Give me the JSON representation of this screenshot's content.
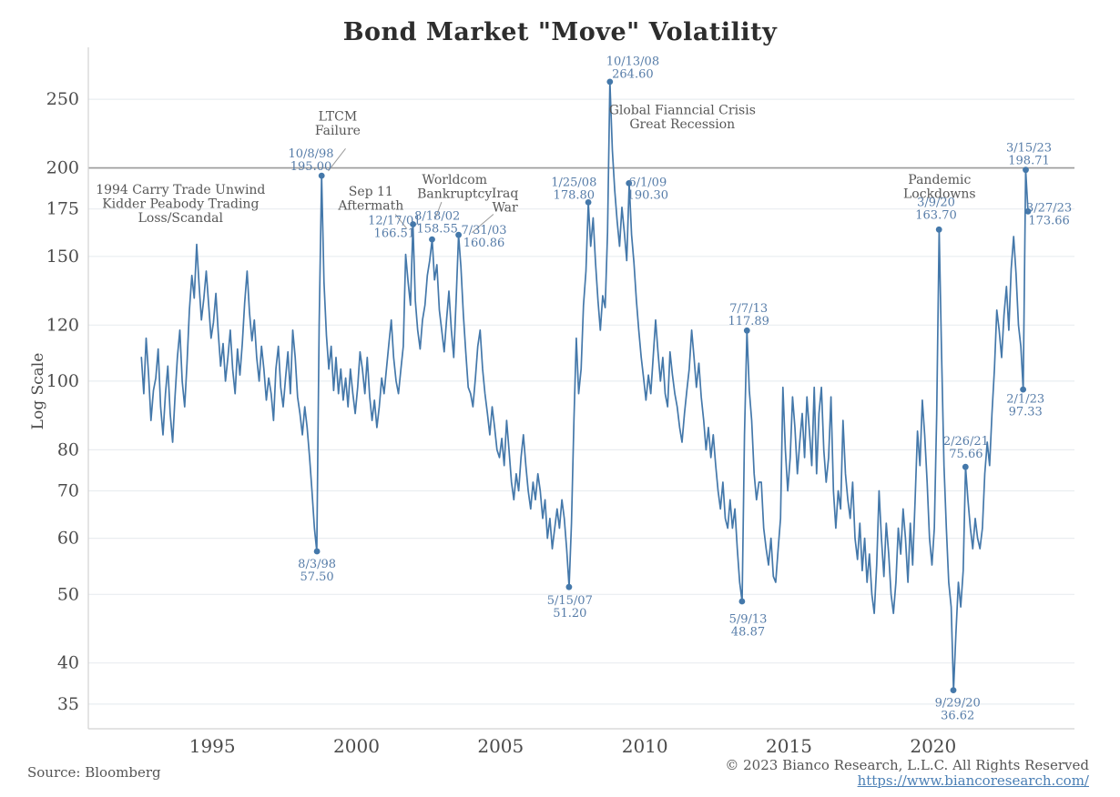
{
  "title": "Bond Market \"Move\" Volatility",
  "y_axis_label": "Log Scale",
  "source": "Source: Bloomberg",
  "copyright": "© 2023 Bianco Research, L.L.C. All Rights Reserved",
  "link": "https://www.biancoresearch.com/",
  "colors": {
    "line": "#4478aa",
    "annotation_text": "#567ca8",
    "event_text": "#575757",
    "grid": "#e9edf0",
    "ref_line": "#9a9a9a",
    "axis": "#d2d2d2",
    "tick_text": "#4b4b4b",
    "link": "#4a7fb5"
  },
  "chart_data": {
    "type": "line",
    "title": "Bond Market \"Move\" Volatility",
    "ylabel": "Log Scale",
    "y_scale": "log",
    "grid": true,
    "x_domain": [
      1990.7,
      2024.9
    ],
    "y_domain": [
      32.3,
      296
    ],
    "x_ticks": [
      1995,
      2000,
      2005,
      2010,
      2015,
      2020
    ],
    "y_ticks": [
      35,
      40,
      50,
      60,
      70,
      80,
      100,
      120,
      150,
      175,
      200,
      250
    ],
    "ref_line": 200,
    "series": {
      "x_start": 1992.54,
      "x_step": 0.083333,
      "values": [
        108,
        96,
        115,
        102,
        88,
        97,
        101,
        111,
        92,
        84,
        96,
        105,
        90,
        82,
        95,
        108,
        118,
        100,
        92,
        106,
        126,
        141,
        131,
        156,
        137,
        122,
        131,
        143,
        128,
        115,
        121,
        133,
        117,
        105,
        113,
        100,
        108,
        118,
        104,
        96,
        111,
        102,
        113,
        129,
        143,
        125,
        114,
        122,
        108,
        100,
        112,
        104,
        94,
        101,
        96,
        88,
        104,
        112,
        98,
        92,
        101,
        110,
        96,
        118,
        108,
        95,
        90,
        84,
        92,
        86,
        78,
        70,
        62,
        57.5,
        120,
        195,
        138,
        116,
        104,
        112,
        97,
        108,
        96,
        104,
        94,
        101,
        92,
        104,
        96,
        90,
        98,
        110,
        104,
        96,
        108,
        95,
        88,
        94,
        86,
        92,
        101,
        96,
        104,
        113,
        122,
        108,
        100,
        96,
        104,
        112,
        151,
        138,
        128,
        166.51,
        130,
        118,
        111,
        122,
        128,
        141,
        148,
        158.55,
        139,
        146,
        126,
        118,
        110,
        122,
        134,
        118,
        108,
        131,
        160.86,
        145,
        124,
        110,
        98,
        96,
        92,
        101,
        112,
        118,
        104,
        96,
        90,
        84,
        92,
        86,
        80,
        78,
        83,
        76,
        88,
        80,
        72,
        68,
        74,
        70,
        78,
        84,
        76,
        70,
        66,
        72,
        68,
        74,
        70,
        64,
        68,
        60,
        64,
        58,
        62,
        66,
        62,
        68,
        64,
        58,
        51.2,
        63,
        88,
        115,
        96,
        104,
        128,
        143,
        178.8,
        155,
        170,
        147,
        130,
        118,
        132,
        127,
        162,
        264.6,
        212,
        186,
        168,
        155,
        176,
        162,
        148,
        190.3,
        161,
        147,
        130,
        118,
        108,
        101,
        94,
        102,
        96,
        108,
        122,
        110,
        100,
        108,
        96,
        92,
        110,
        102,
        96,
        92,
        86,
        82,
        90,
        97,
        104,
        118,
        108,
        98,
        106,
        95,
        88,
        80,
        86,
        78,
        84,
        76,
        70,
        66,
        72,
        64,
        62,
        68,
        62,
        66,
        58,
        52,
        48.87,
        84,
        117.89,
        97,
        88,
        74,
        68,
        72,
        72,
        62,
        58,
        55,
        60,
        53,
        52,
        58,
        64,
        98,
        80,
        70,
        78,
        95,
        86,
        74,
        82,
        90,
        78,
        95,
        85,
        76,
        98,
        74,
        90,
        98,
        80,
        72,
        78,
        95,
        70,
        62,
        70,
        66,
        88,
        74,
        68,
        64,
        72,
        60,
        56,
        63,
        54,
        60,
        52,
        57,
        50,
        47,
        55,
        70,
        60,
        53,
        63,
        57,
        50,
        47,
        52,
        62,
        57,
        66,
        60,
        52,
        63,
        55,
        68,
        85,
        76,
        94,
        84,
        72,
        60,
        55,
        62,
        90,
        163.7,
        110,
        76,
        62,
        52,
        48,
        36.62,
        44,
        52,
        48,
        54,
        75.66,
        68,
        62,
        58,
        64,
        60,
        58,
        62,
        74,
        82,
        76,
        90,
        104,
        126,
        118,
        108,
        124,
        136,
        118,
        144,
        160,
        142,
        120,
        112,
        97.33,
        198.71,
        173.66
      ]
    },
    "annotations": [
      {
        "date": "10/8/98",
        "value_label": "195.00",
        "year": 1998.79,
        "value": 195.0,
        "label_year": 1998.42,
        "label_value": 205
      },
      {
        "date": "8/3/98",
        "value_label": "57.50",
        "year": 1998.63,
        "value": 57.5,
        "label_year": 1998.63,
        "label_value": 54
      },
      {
        "date": "12/17/01",
        "value_label": "166.51",
        "year": 2001.96,
        "value": 166.51,
        "label_year": 2001.32,
        "label_value": 165
      },
      {
        "date": "8/18/02",
        "value_label": "158.55",
        "year": 2002.62,
        "value": 158.55,
        "label_year": 2002.8,
        "label_value": 167.5
      },
      {
        "date": "7/31/03",
        "value_label": "160.86",
        "year": 2003.54,
        "value": 160.86,
        "label_year": 2004.42,
        "label_value": 160
      },
      {
        "date": "1/25/08",
        "value_label": "178.80",
        "year": 2008.04,
        "value": 178.8,
        "label_year": 2007.54,
        "label_value": 187
      },
      {
        "date": "10/13/08",
        "value_label": "264.60",
        "year": 2008.79,
        "value": 264.6,
        "label_year": 2009.58,
        "label_value": 277
      },
      {
        "date": "6/1/09",
        "value_label": "190.30",
        "year": 2009.45,
        "value": 190.3,
        "label_year": 2010.1,
        "label_value": 187
      },
      {
        "date": "5/15/07",
        "value_label": "51.20",
        "year": 2007.37,
        "value": 51.2,
        "label_year": 2007.4,
        "label_value": 48
      },
      {
        "date": "7/7/13",
        "value_label": "117.89",
        "year": 2013.54,
        "value": 117.89,
        "label_year": 2013.6,
        "label_value": 124
      },
      {
        "date": "5/9/13",
        "value_label": "48.87",
        "year": 2013.37,
        "value": 48.87,
        "label_year": 2013.58,
        "label_value": 45.2
      },
      {
        "date": "3/9/20",
        "value_label": "163.70",
        "year": 2020.2,
        "value": 163.7,
        "label_year": 2020.1,
        "label_value": 175
      },
      {
        "date": "9/29/20",
        "value_label": "36.62",
        "year": 2020.7,
        "value": 36.62,
        "label_year": 2020.85,
        "label_value": 34.4
      },
      {
        "date": "2/26/21",
        "value_label": "75.66",
        "year": 2021.12,
        "value": 75.66,
        "label_year": 2021.14,
        "label_value": 80.5
      },
      {
        "date": "2/1/23",
        "value_label": "97.33",
        "year": 2023.12,
        "value": 97.33,
        "label_year": 2023.2,
        "label_value": 92.5
      },
      {
        "date": "3/15/23",
        "value_label": "198.71",
        "year": 2023.21,
        "value": 198.71,
        "label_year": 2023.32,
        "label_value": 209
      },
      {
        "date": "3/27/23",
        "value_label": "173.66",
        "year": 2023.29,
        "value": 173.66,
        "label_year": 2024.02,
        "label_value": 172
      }
    ],
    "events": [
      {
        "lines": [
          "1994 Carry Trade Unwind",
          "Kidder Peabody Trading",
          "Loss/Scandal"
        ],
        "year": 1993.9,
        "value": 178,
        "leader": null
      },
      {
        "lines": [
          "LTCM",
          "Failure"
        ],
        "year": 1999.35,
        "value": 231,
        "leader": {
          "x1": 1999.62,
          "v1": 213,
          "x2": 1999.02,
          "v2": 198
        }
      },
      {
        "lines": [
          "Sep 11",
          "Aftermath"
        ],
        "year": 2000.5,
        "value": 181,
        "leader": {
          "x1": 2001.35,
          "v1": 172,
          "x2": 2001.75,
          "v2": 164
        }
      },
      {
        "lines": [
          "Worldcom",
          "Bankruptcy"
        ],
        "year": 2003.4,
        "value": 188,
        "leader": {
          "x1": 2002.95,
          "v1": 179,
          "x2": 2002.72,
          "v2": 169
        }
      },
      {
        "lines": [
          "Iraq",
          "War"
        ],
        "year": 2005.15,
        "value": 180,
        "leader": {
          "x1": 2004.75,
          "v1": 172,
          "x2": 2004.0,
          "v2": 162
        }
      },
      {
        "lines": [
          "Global Fianncial Crisis",
          "Great Recession"
        ],
        "year": 2011.3,
        "value": 236,
        "leader": null
      },
      {
        "lines": [
          "Pandemic",
          "Lockdowns"
        ],
        "year": 2020.22,
        "value": 188,
        "leader": null
      }
    ]
  }
}
